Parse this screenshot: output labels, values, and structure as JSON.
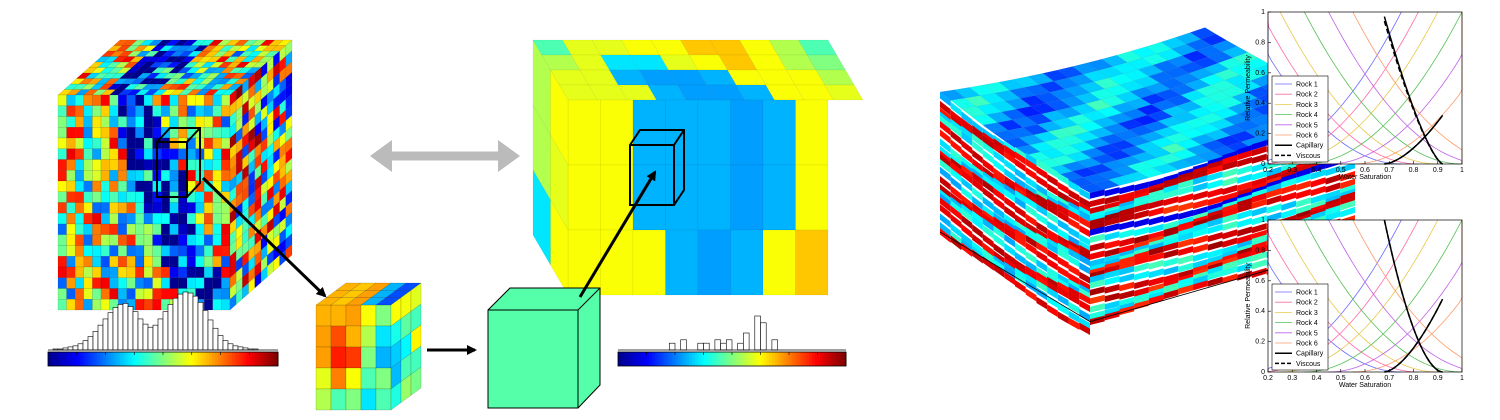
{
  "colormap": [
    "#00008f",
    "#0000ff",
    "#0080ff",
    "#00ffff",
    "#80ff80",
    "#ffff00",
    "#ff8000",
    "#ff0000",
    "#800000"
  ],
  "fine_model": {
    "description_icon": "fine-grid-cube-icon"
  },
  "coarse_model": {
    "description_icon": "coarse-grid-cube-icon"
  },
  "upscaled_block_color": "#55ffaa",
  "arrow_color": "#bbbbbb",
  "histogram_fine": [
    0,
    1,
    1,
    2,
    3,
    4,
    6,
    9,
    13,
    18,
    24,
    30,
    36,
    41,
    44,
    45,
    42,
    37,
    30,
    25,
    22,
    24,
    30,
    37,
    44,
    50,
    54,
    56,
    55,
    52,
    46,
    38,
    29,
    21,
    14,
    9,
    6,
    4,
    3,
    2,
    1,
    1,
    0,
    0,
    0,
    0
  ],
  "histogram_coarse": [
    0,
    0,
    0,
    0,
    0,
    0,
    0,
    0,
    0,
    2,
    0,
    3,
    0,
    0,
    2,
    2,
    0,
    3,
    2,
    3,
    0,
    2,
    5,
    0,
    10,
    8,
    0,
    3,
    0,
    0,
    0,
    0,
    0,
    0,
    0,
    0,
    0,
    0,
    0,
    0
  ],
  "plots": [
    {
      "ylabel": "Relative Permeability",
      "xlabel": "Water Saturation",
      "xticks": [
        "0.2",
        "0.3",
        "0.4",
        "0.5",
        "0.6",
        "0.7",
        "0.8",
        "0.9",
        "1"
      ],
      "yticks": [
        "0",
        "0.2",
        "0.4",
        "0.6",
        "0.8",
        "1"
      ],
      "legend": [
        "Rock 1",
        "Rock 2",
        "Rock 3",
        "Rock 4",
        "Rock 5",
        "Rock 6",
        "Capillary",
        "Viscous"
      ]
    },
    {
      "ylabel": "Relative Permeability",
      "xlabel": "Water Saturation",
      "xticks": [
        "0.2",
        "0.3",
        "0.4",
        "0.5",
        "0.6",
        "0.7",
        "0.8",
        "0.9",
        "1"
      ],
      "yticks": [
        "0",
        "0.2",
        "0.4",
        "0.6",
        "0.8",
        "1"
      ],
      "legend": [
        "Rock 1",
        "Rock 2",
        "Rock 3",
        "Rock 4",
        "Rock 5",
        "Rock 6",
        "Capillary",
        "Viscous"
      ]
    }
  ],
  "rock_colors": [
    "#6a6aff",
    "#ff6aa8",
    "#e8c84a",
    "#55c055",
    "#c060e8",
    "#ff9a6a"
  ]
}
